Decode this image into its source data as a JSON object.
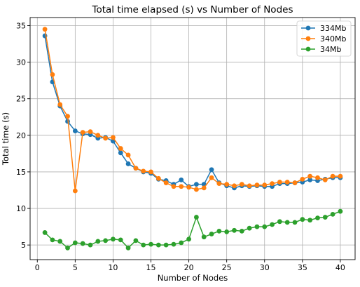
{
  "chart_data": {
    "type": "line",
    "title": "Total time elapsed (s) vs Number of Nodes",
    "xlabel": "Number of Nodes",
    "ylabel": "Total time (s)",
    "xlim": [
      -0.95,
      41.95
    ],
    "ylim": [
      3.0,
      36.1
    ],
    "xticks": [
      0,
      5,
      10,
      15,
      20,
      25,
      30,
      35,
      40
    ],
    "yticks": [
      5,
      10,
      15,
      20,
      25,
      30,
      35
    ],
    "grid": true,
    "legend_position": "top-right",
    "marker": "circle",
    "x": [
      1,
      2,
      3,
      4,
      5,
      6,
      7,
      8,
      9,
      10,
      11,
      12,
      13,
      14,
      15,
      16,
      17,
      18,
      19,
      20,
      21,
      22,
      23,
      24,
      25,
      26,
      27,
      28,
      29,
      30,
      31,
      32,
      33,
      34,
      35,
      36,
      37,
      38,
      39,
      40
    ],
    "series": [
      {
        "name": "334Mb",
        "color": "#1f77b4",
        "values": [
          33.6,
          27.3,
          24.0,
          21.9,
          20.6,
          20.2,
          20.1,
          19.6,
          19.7,
          19.2,
          17.6,
          16.1,
          15.5,
          15.0,
          14.8,
          14.0,
          13.8,
          13.3,
          13.9,
          13.0,
          13.3,
          13.3,
          15.3,
          13.5,
          13.1,
          12.8,
          13.1,
          13.0,
          13.1,
          13.0,
          13.0,
          13.4,
          13.4,
          13.5,
          13.6,
          13.9,
          13.8,
          14.0,
          14.2,
          14.2
        ]
      },
      {
        "name": "340Mb",
        "color": "#ff7f0e",
        "values": [
          34.5,
          28.3,
          24.2,
          22.6,
          12.4,
          20.4,
          20.5,
          20.0,
          19.6,
          19.7,
          18.2,
          17.3,
          15.5,
          15.1,
          15.0,
          14.1,
          13.5,
          13.0,
          13.0,
          12.9,
          12.6,
          12.8,
          14.2,
          13.4,
          13.3,
          13.1,
          13.3,
          13.1,
          13.2,
          13.2,
          13.4,
          13.6,
          13.6,
          13.5,
          14.0,
          14.4,
          14.2,
          13.9,
          14.4,
          14.4
        ]
      },
      {
        "name": "34Mb",
        "color": "#2ca02c",
        "values": [
          6.7,
          5.7,
          5.5,
          4.6,
          5.3,
          5.2,
          5.0,
          5.5,
          5.6,
          5.8,
          5.7,
          4.6,
          5.6,
          5.0,
          5.1,
          5.0,
          5.0,
          5.1,
          5.3,
          5.8,
          8.8,
          6.1,
          6.5,
          6.9,
          6.8,
          7.0,
          6.9,
          7.3,
          7.5,
          7.5,
          7.8,
          8.2,
          8.1,
          8.1,
          8.5,
          8.4,
          8.7,
          8.8,
          9.2,
          9.6
        ]
      }
    ]
  }
}
